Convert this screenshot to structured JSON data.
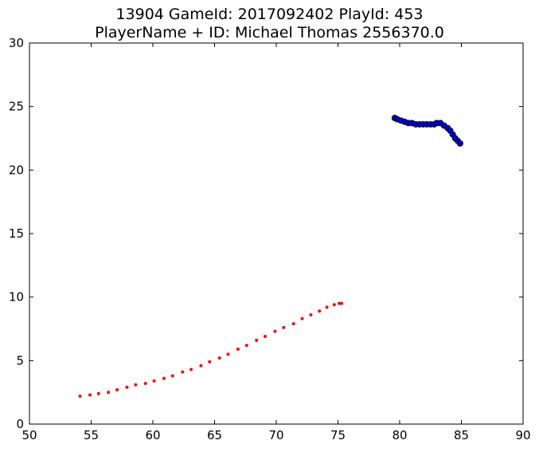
{
  "chart_data": {
    "type": "scatter",
    "title": [
      "13904 GameId: 2017092402 PlayId: 453",
      "PlayerName + ID: Michael Thomas 2556370.0"
    ],
    "xlabel": "",
    "ylabel": "",
    "xlim": [
      50,
      90
    ],
    "ylim": [
      0,
      30
    ],
    "xticks": [
      50,
      55,
      60,
      65,
      70,
      75,
      80,
      85,
      90
    ],
    "yticks": [
      0,
      5,
      10,
      15,
      20,
      25,
      30
    ],
    "grid": false,
    "legend": "none",
    "series": [
      {
        "color": "#ff0000",
        "marker": "small-dot",
        "points": [
          [
            54.1,
            2.2
          ],
          [
            54.9,
            2.3
          ],
          [
            55.6,
            2.4
          ],
          [
            56.4,
            2.5
          ],
          [
            57.1,
            2.7
          ],
          [
            57.9,
            2.9
          ],
          [
            58.6,
            3.1
          ],
          [
            59.4,
            3.2
          ],
          [
            60.1,
            3.4
          ],
          [
            60.9,
            3.6
          ],
          [
            61.6,
            3.8
          ],
          [
            62.4,
            4.1
          ],
          [
            63.1,
            4.3
          ],
          [
            63.9,
            4.6
          ],
          [
            64.6,
            4.9
          ],
          [
            65.4,
            5.2
          ],
          [
            66.1,
            5.5
          ],
          [
            66.9,
            5.9
          ],
          [
            67.6,
            6.2
          ],
          [
            68.4,
            6.6
          ],
          [
            69.1,
            6.9
          ],
          [
            69.9,
            7.3
          ],
          [
            70.6,
            7.6
          ],
          [
            71.4,
            7.9
          ],
          [
            72.1,
            8.3
          ],
          [
            72.8,
            8.6
          ],
          [
            73.5,
            8.9
          ],
          [
            74.1,
            9.2
          ],
          [
            74.7,
            9.4
          ],
          [
            75.1,
            9.5
          ],
          [
            75.3,
            9.5
          ]
        ]
      },
      {
        "color": "#0000cc",
        "marker": "circle",
        "points": [
          [
            79.6,
            24.1
          ],
          [
            79.8,
            24.0
          ],
          [
            80.1,
            23.9
          ],
          [
            80.4,
            23.8
          ],
          [
            80.7,
            23.7
          ],
          [
            81.0,
            23.7
          ],
          [
            81.3,
            23.6
          ],
          [
            81.6,
            23.6
          ],
          [
            81.9,
            23.6
          ],
          [
            82.2,
            23.6
          ],
          [
            82.5,
            23.6
          ],
          [
            82.8,
            23.6
          ],
          [
            83.0,
            23.7
          ],
          [
            83.3,
            23.7
          ],
          [
            83.6,
            23.5
          ],
          [
            83.9,
            23.3
          ],
          [
            84.1,
            23.1
          ],
          [
            84.3,
            22.8
          ],
          [
            84.5,
            22.5
          ],
          [
            84.7,
            22.3
          ],
          [
            84.9,
            22.1
          ]
        ]
      }
    ]
  }
}
